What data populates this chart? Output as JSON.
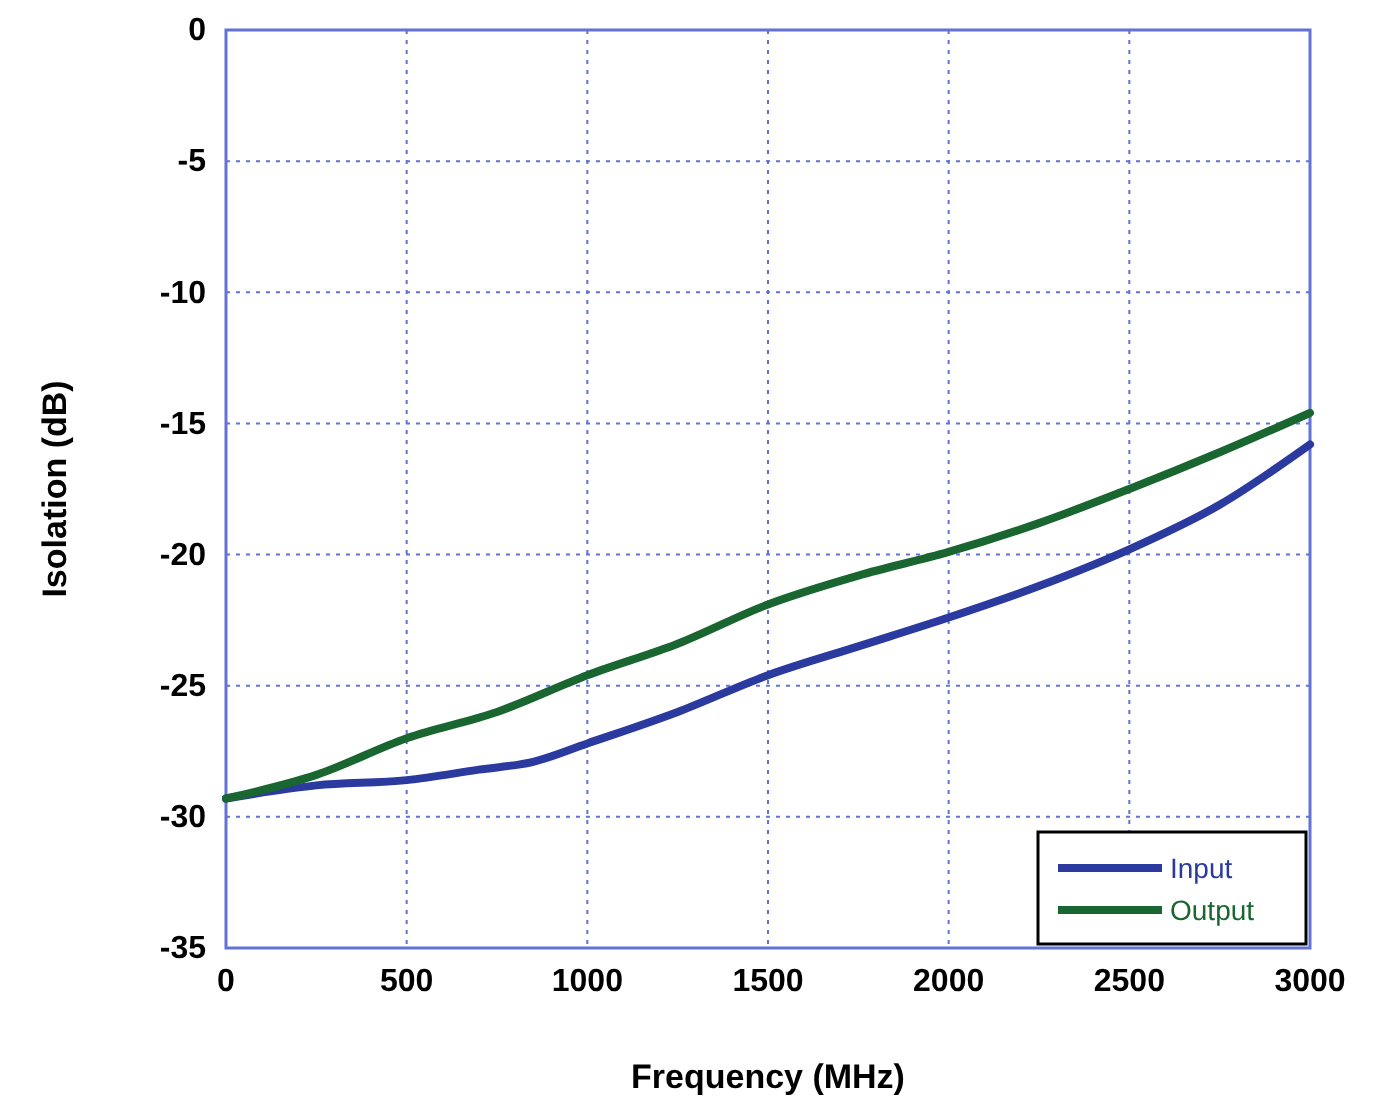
{
  "chart_data": {
    "type": "line",
    "xlabel": "Frequency (MHz)",
    "ylabel": "Isolation (dB)",
    "xlim": [
      0,
      3000
    ],
    "xticks": [
      0,
      500,
      1000,
      1500,
      2000,
      2500,
      3000
    ],
    "ylim": [
      -35,
      0
    ],
    "yticks": [
      -35,
      -30,
      -25,
      -20,
      -15,
      -10,
      -5,
      0
    ],
    "grid": true,
    "legend": "bottom right",
    "line_style": "solid",
    "series": [
      {
        "name": "Input",
        "color": "#2b3a9e",
        "x": [
          0,
          250,
          500,
          700,
          850,
          1000,
          1250,
          1500,
          1750,
          2000,
          2250,
          2500,
          2750,
          3000
        ],
        "values": [
          -29.3,
          -28.8,
          -28.6,
          -28.2,
          -27.9,
          -27.2,
          -26.0,
          -24.6,
          -23.5,
          -22.4,
          -21.2,
          -19.8,
          -18.1,
          -15.8
        ]
      },
      {
        "name": "Output",
        "color": "#1a6630",
        "x": [
          0,
          250,
          500,
          750,
          1000,
          1250,
          1500,
          1750,
          2000,
          2250,
          2500,
          2750,
          3000
        ],
        "values": [
          -29.3,
          -28.4,
          -27.0,
          -26.0,
          -24.6,
          -23.4,
          -21.9,
          -20.8,
          -19.9,
          -18.8,
          -17.5,
          -16.1,
          -14.6
        ]
      }
    ]
  }
}
